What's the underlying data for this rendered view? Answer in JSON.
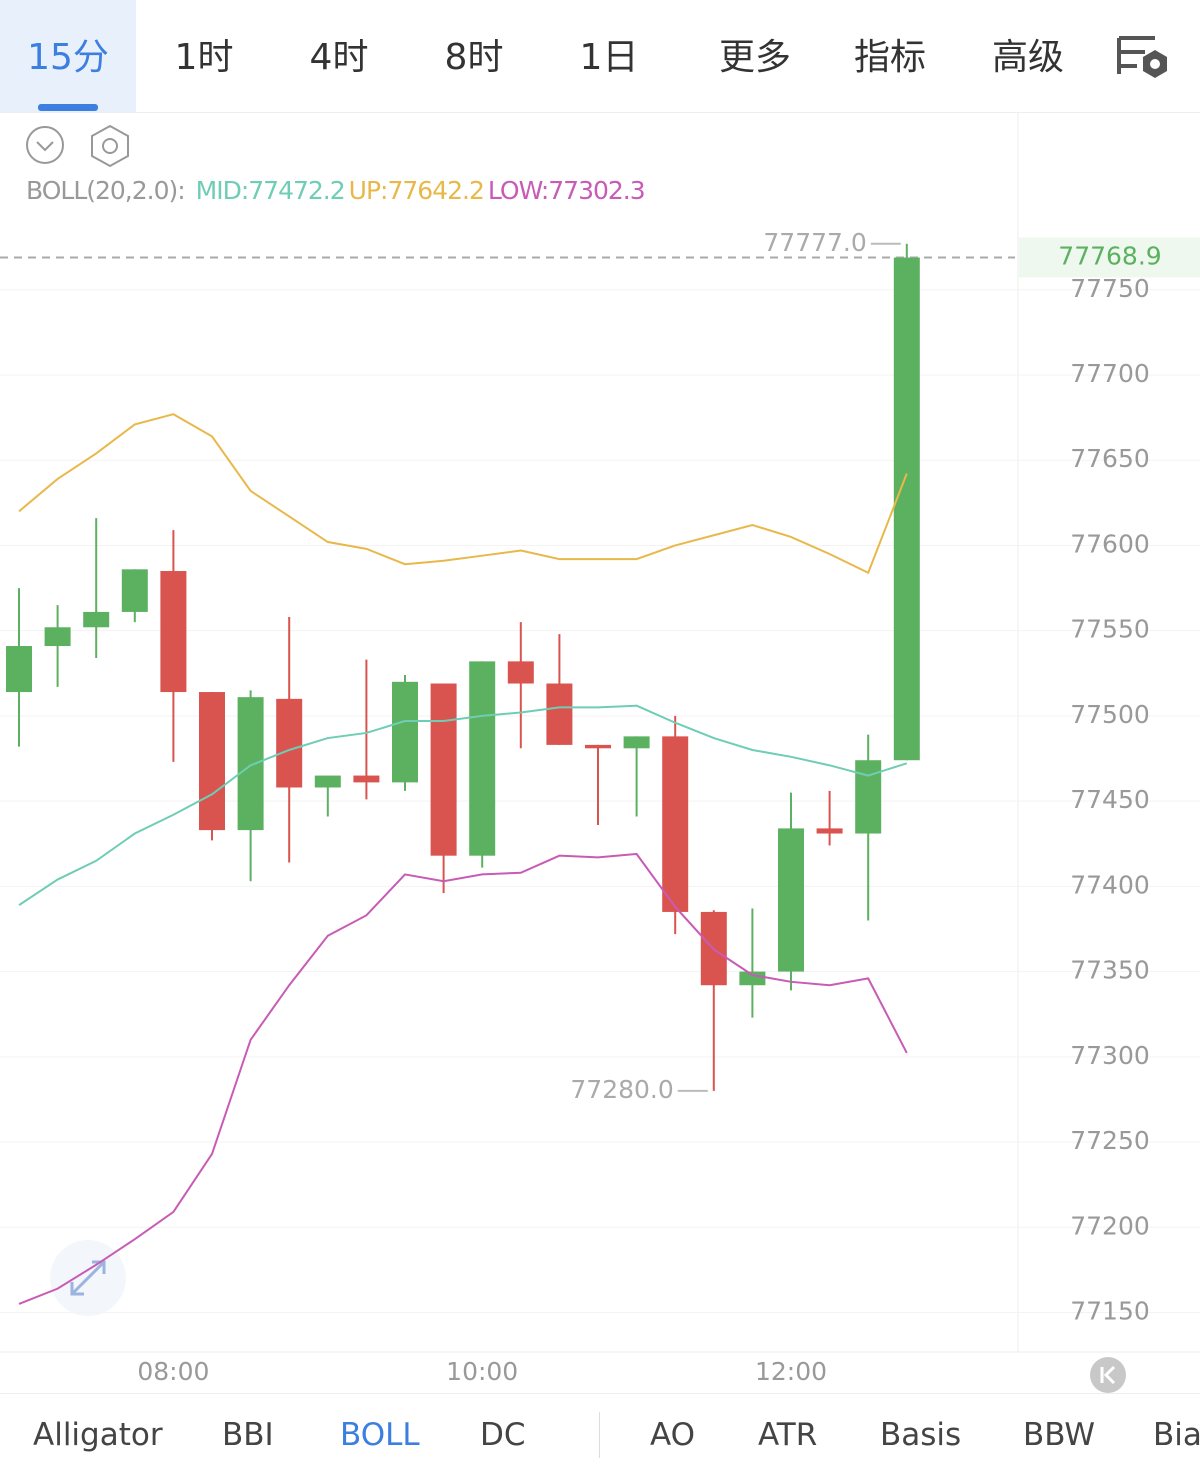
{
  "tabs": [
    "15分",
    "1时",
    "4时",
    "8时",
    "1日",
    "更多",
    "指标",
    "高级"
  ],
  "indicators": [
    "Alligator",
    "BBI",
    "BOLL",
    "DC",
    "AO",
    "ATR",
    "Basis",
    "BBW",
    "Bias"
  ],
  "chart_data": {
    "type": "candlestick",
    "legend_title": "BOLL(20,2.0):",
    "categories": [
      null,
      null,
      null,
      null,
      "08:00",
      null,
      null,
      null,
      null,
      null,
      null,
      null,
      "10:00",
      null,
      null,
      null,
      null,
      null,
      null,
      null,
      "12:00",
      null,
      null,
      null
    ],
    "open": [
      77514,
      77541,
      77552,
      77561,
      77585,
      77514,
      77433,
      77510,
      77458,
      77465,
      77461,
      77519,
      77418,
      77532,
      77519,
      77483,
      77481,
      77488,
      77385,
      77342,
      77350,
      77434,
      77431,
      77474
    ],
    "high": [
      77575,
      77565,
      77616,
      77586,
      77609,
      77514,
      77515,
      77558,
      77465,
      77533,
      77524,
      77519,
      77532,
      77555,
      77548,
      77483,
      77488,
      77500,
      77386,
      77387,
      77455,
      77456,
      77489,
      77777
    ],
    "low": [
      77482,
      77517,
      77534,
      77555,
      77473,
      77427,
      77403,
      77414,
      77441,
      77451,
      77456,
      77396,
      77411,
      77481,
      77483,
      77436,
      77441,
      77372,
      77280,
      77323,
      77339,
      77424,
      77380,
      77474
    ],
    "close": [
      77541,
      77552,
      77561,
      77586,
      77514,
      77433,
      77511,
      77458,
      77465,
      77461,
      77520,
      77418,
      77532,
      77519,
      77483,
      77481,
      77488,
      77385,
      77342,
      77350,
      77434,
      77431,
      77474,
      77768.9
    ],
    "up_color": "#5cb160",
    "down_color": "#d9534f",
    "series": [
      {
        "name": "MID:",
        "color": "#6fcdb5",
        "values": [
          77389,
          77404,
          77415,
          77431,
          77442,
          77454,
          77471,
          77480,
          77487,
          77490,
          77497,
          77497,
          77500,
          77502,
          77505,
          77505,
          77506,
          77496,
          77487,
          77480,
          77476,
          77471,
          77465,
          77472.2
        ]
      },
      {
        "name": "UP:",
        "color": "#e8b84a",
        "values": [
          77620,
          77639,
          77654,
          77671,
          77677,
          77664,
          77632,
          77617,
          77602,
          77598,
          77589,
          77591,
          77594,
          77597,
          77592,
          77592,
          77592,
          77600,
          77606,
          77612,
          77605,
          77595,
          77584,
          77642.2
        ]
      },
      {
        "name": "LOW:",
        "color": "#c85bb5",
        "values": [
          77155,
          77164,
          77178,
          77193,
          77209,
          77243,
          77310,
          77342,
          77371,
          77383,
          77407,
          77403,
          77407,
          77408,
          77418,
          77417,
          77419,
          77388,
          77363,
          77348,
          77344,
          77342,
          77346,
          77302.3
        ]
      }
    ],
    "ylim": [
      77128,
      77788
    ],
    "yticks": [
      77150,
      77200,
      77250,
      77300,
      77350,
      77400,
      77450,
      77500,
      77550,
      77600,
      77650,
      77700,
      77750
    ],
    "last_price": 77768.9,
    "annotations": [
      {
        "value": 77777,
        "label": "77777.0"
      },
      {
        "value": 77280,
        "label": "77280.0"
      }
    ],
    "grid": true
  }
}
